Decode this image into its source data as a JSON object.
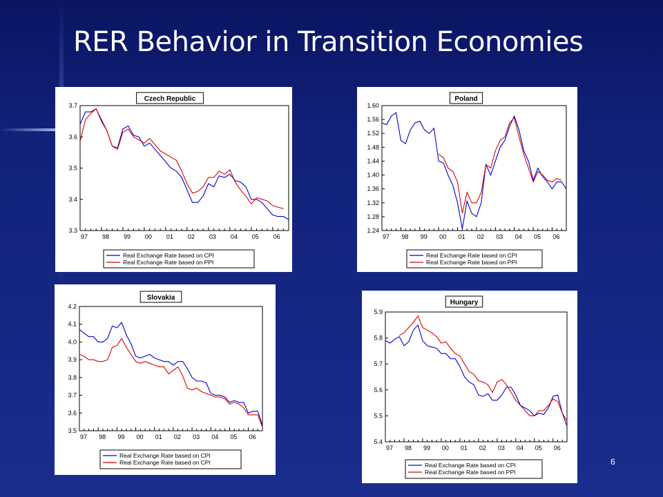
{
  "slide": {
    "title": "RER Behavior in Transition Economies",
    "page_number": "6"
  },
  "chart_data": [
    {
      "type": "line",
      "title": "Czech Republic",
      "x_labels": [
        "97",
        "98",
        "99",
        "00",
        "01",
        "02",
        "03",
        "04",
        "05",
        "06"
      ],
      "ylim": [
        3.3,
        3.7
      ],
      "yticks": [
        "3.3",
        "3.4",
        "3.5",
        "3.6",
        "3.7"
      ],
      "xlim": [
        1997.0,
        2006.75
      ],
      "series": [
        {
          "name": "Real Exchange Rate based on CPI",
          "color": "#0000cc",
          "x": [
            1997.0,
            1997.25,
            1997.5,
            1997.75,
            1998.0,
            1998.25,
            1998.5,
            1998.75,
            1999.0,
            1999.25,
            1999.5,
            1999.75,
            2000.0,
            2000.25,
            2000.5,
            2000.75,
            2001.0,
            2001.25,
            2001.5,
            2001.75,
            2002.0,
            2002.25,
            2002.5,
            2002.75,
            2003.0,
            2003.25,
            2003.5,
            2003.75,
            2004.0,
            2004.25,
            2004.5,
            2004.75,
            2005.0,
            2005.25,
            2005.5,
            2005.75,
            2006.0,
            2006.25,
            2006.5,
            2006.75
          ],
          "y": [
            3.64,
            3.68,
            3.68,
            3.69,
            3.65,
            3.62,
            3.57,
            3.565,
            3.625,
            3.635,
            3.605,
            3.6,
            3.57,
            3.58,
            3.56,
            3.54,
            3.52,
            3.5,
            3.49,
            3.47,
            3.43,
            3.39,
            3.39,
            3.41,
            3.45,
            3.44,
            3.475,
            3.47,
            3.48,
            3.46,
            3.455,
            3.44,
            3.4,
            3.4,
            3.39,
            3.37,
            3.35,
            3.345,
            3.345,
            3.335
          ]
        },
        {
          "name": "Real Exchange Rate based on PPI",
          "color": "#dd0000",
          "x": [
            1997.0,
            1997.25,
            1997.5,
            1997.75,
            1998.0,
            1998.25,
            1998.5,
            1998.75,
            1999.0,
            1999.25,
            1999.5,
            1999.75,
            2000.0,
            2000.25,
            2000.5,
            2000.75,
            2001.0,
            2001.25,
            2001.5,
            2001.75,
            2002.0,
            2002.25,
            2002.5,
            2002.75,
            2003.0,
            2003.25,
            2003.5,
            2003.75,
            2004.0,
            2004.25,
            2004.5,
            2004.75,
            2005.0,
            2005.25,
            2005.5,
            2005.75,
            2006.0,
            2006.25,
            2006.5
          ],
          "y": [
            3.585,
            3.655,
            3.675,
            3.69,
            3.655,
            3.62,
            3.57,
            3.56,
            3.615,
            3.625,
            3.6,
            3.59,
            3.58,
            3.595,
            3.575,
            3.555,
            3.545,
            3.535,
            3.525,
            3.49,
            3.45,
            3.42,
            3.425,
            3.44,
            3.47,
            3.47,
            3.49,
            3.48,
            3.495,
            3.455,
            3.43,
            3.41,
            3.385,
            3.405,
            3.4,
            3.395,
            3.38,
            3.375,
            3.37
          ]
        }
      ]
    },
    {
      "type": "line",
      "title": "Poland",
      "x_labels": [
        "97",
        "98",
        "99",
        "00",
        "01",
        "02",
        "03",
        "04",
        "05",
        "06"
      ],
      "ylim": [
        1.24,
        1.6
      ],
      "yticks": [
        "1.24",
        "1.28",
        "1.32",
        "1.36",
        "1.40",
        "1.44",
        "1.48",
        "1.52",
        "1.56",
        "1.60"
      ],
      "xlim": [
        1997.0,
        2006.75
      ],
      "series": [
        {
          "name": "Real Exchange Rate based on CPI",
          "color": "#0000cc",
          "x": [
            1997.0,
            1997.25,
            1997.5,
            1997.75,
            1998.0,
            1998.25,
            1998.5,
            1998.75,
            1999.0,
            1999.25,
            1999.5,
            1999.75,
            2000.0,
            2000.25,
            2000.5,
            2000.75,
            2001.0,
            2001.25,
            2001.5,
            2001.75,
            2002.0,
            2002.25,
            2002.5,
            2002.75,
            2003.0,
            2003.25,
            2003.5,
            2003.75,
            2004.0,
            2004.25,
            2004.5,
            2004.75,
            2005.0,
            2005.25,
            2005.5,
            2005.75,
            2006.0,
            2006.25,
            2006.5,
            2006.75
          ],
          "y": [
            1.55,
            1.545,
            1.57,
            1.58,
            1.5,
            1.49,
            1.53,
            1.55,
            1.555,
            1.53,
            1.52,
            1.535,
            1.44,
            1.435,
            1.4,
            1.37,
            1.32,
            1.245,
            1.325,
            1.29,
            1.28,
            1.32,
            1.43,
            1.4,
            1.44,
            1.48,
            1.5,
            1.54,
            1.57,
            1.53,
            1.47,
            1.44,
            1.385,
            1.42,
            1.395,
            1.38,
            1.36,
            1.38,
            1.38,
            1.36
          ]
        },
        {
          "name": "Real Exchange Rate based on PPI",
          "color": "#dd0000",
          "x": [
            2000.0,
            2000.25,
            2000.5,
            2000.75,
            2001.0,
            2001.25,
            2001.5,
            2001.75,
            2002.0,
            2002.25,
            2002.5,
            2002.75,
            2003.0,
            2003.25,
            2003.5,
            2003.75,
            2004.0,
            2004.25,
            2004.5,
            2004.75,
            2005.0,
            2005.25,
            2005.5,
            2005.75,
            2006.0,
            2006.25,
            2006.5
          ],
          "y": [
            1.46,
            1.45,
            1.42,
            1.41,
            1.38,
            1.29,
            1.35,
            1.32,
            1.32,
            1.35,
            1.43,
            1.42,
            1.47,
            1.5,
            1.51,
            1.55,
            1.565,
            1.51,
            1.46,
            1.42,
            1.38,
            1.41,
            1.4,
            1.385,
            1.38,
            1.39,
            1.385
          ]
        }
      ]
    },
    {
      "type": "line",
      "title": "Slovakia",
      "x_labels": [
        "97",
        "98",
        "99",
        "00",
        "01",
        "02",
        "03",
        "04",
        "05",
        "06"
      ],
      "ylim": [
        3.5,
        4.2
      ],
      "yticks": [
        "3.5",
        "3.6",
        "3.7",
        "3.8",
        "3.9",
        "4.0",
        "4.1",
        "4.2"
      ],
      "xlim": [
        1997.0,
        2006.75
      ],
      "series": [
        {
          "name": "Real Exchange Rate based on CPI",
          "color": "#0000cc",
          "x": [
            1997.0,
            1997.25,
            1997.5,
            1997.75,
            1998.0,
            1998.25,
            1998.5,
            1998.75,
            1999.0,
            1999.25,
            1999.5,
            1999.75,
            2000.0,
            2000.25,
            2000.5,
            2000.75,
            2001.0,
            2001.25,
            2001.5,
            2001.75,
            2002.0,
            2002.25,
            2002.5,
            2002.75,
            2003.0,
            2003.25,
            2003.5,
            2003.75,
            2004.0,
            2004.25,
            2004.5,
            2004.75,
            2005.0,
            2005.25,
            2005.5,
            2005.75,
            2006.0,
            2006.25,
            2006.5,
            2006.75
          ],
          "y": [
            4.07,
            4.05,
            4.03,
            4.03,
            4.0,
            4.0,
            4.02,
            4.09,
            4.08,
            4.11,
            4.04,
            3.99,
            3.92,
            3.91,
            3.92,
            3.93,
            3.91,
            3.9,
            3.89,
            3.89,
            3.87,
            3.89,
            3.89,
            3.85,
            3.8,
            3.78,
            3.78,
            3.77,
            3.71,
            3.7,
            3.7,
            3.69,
            3.66,
            3.67,
            3.66,
            3.66,
            3.6,
            3.61,
            3.61,
            3.53
          ]
        },
        {
          "name": "Real Exchange Rate based on CPI",
          "color": "#dd0000",
          "x": [
            1997.0,
            1997.25,
            1997.5,
            1997.75,
            1998.0,
            1998.25,
            1998.5,
            1998.75,
            1999.0,
            1999.25,
            1999.5,
            1999.75,
            2000.0,
            2000.25,
            2000.5,
            2000.75,
            2001.0,
            2001.25,
            2001.5,
            2001.75,
            2002.0,
            2002.25,
            2002.5,
            2002.75,
            2003.0,
            2003.25,
            2003.5,
            2003.75,
            2004.0,
            2004.25,
            2004.5,
            2004.75,
            2005.0,
            2005.25,
            2005.5,
            2005.75,
            2006.0,
            2006.25,
            2006.5,
            2006.75
          ],
          "y": [
            3.93,
            3.92,
            3.9,
            3.9,
            3.89,
            3.89,
            3.9,
            3.97,
            3.98,
            4.02,
            3.97,
            3.93,
            3.89,
            3.88,
            3.89,
            3.88,
            3.87,
            3.86,
            3.86,
            3.82,
            3.84,
            3.86,
            3.81,
            3.74,
            3.73,
            3.74,
            3.72,
            3.71,
            3.7,
            3.69,
            3.69,
            3.68,
            3.65,
            3.66,
            3.65,
            3.63,
            3.59,
            3.59,
            3.59,
            3.52
          ]
        }
      ]
    },
    {
      "type": "line",
      "title": "Hungary",
      "x_labels": [
        "97",
        "98",
        "99",
        "00",
        "01",
        "02",
        "03",
        "04",
        "05",
        "06"
      ],
      "ylim": [
        5.4,
        5.9
      ],
      "yticks": [
        "5.4",
        "5.5",
        "5.6",
        "5.7",
        "5.8",
        "5.9"
      ],
      "xlim": [
        1997.0,
        2006.75
      ],
      "series": [
        {
          "name": "Real Exchange Rate based on CPI",
          "color": "#0000cc",
          "x": [
            1997.0,
            1997.25,
            1997.5,
            1997.75,
            1998.0,
            1998.25,
            1998.5,
            1998.75,
            1999.0,
            1999.25,
            1999.5,
            1999.75,
            2000.0,
            2000.25,
            2000.5,
            2000.75,
            2001.0,
            2001.25,
            2001.5,
            2001.75,
            2002.0,
            2002.25,
            2002.5,
            2002.75,
            2003.0,
            2003.25,
            2003.5,
            2003.75,
            2004.0,
            2004.25,
            2004.5,
            2004.75,
            2005.0,
            2005.25,
            2005.5,
            2005.75,
            2006.0,
            2006.25,
            2006.5,
            2006.75
          ],
          "y": [
            5.79,
            5.78,
            5.795,
            5.805,
            5.77,
            5.785,
            5.83,
            5.85,
            5.79,
            5.77,
            5.765,
            5.76,
            5.74,
            5.74,
            5.72,
            5.72,
            5.69,
            5.65,
            5.63,
            5.62,
            5.58,
            5.575,
            5.585,
            5.56,
            5.56,
            5.58,
            5.61,
            5.61,
            5.58,
            5.54,
            5.53,
            5.52,
            5.5,
            5.51,
            5.505,
            5.53,
            5.575,
            5.58,
            5.51,
            5.46
          ]
        },
        {
          "name": "Real Exchange Rate based on PPI",
          "color": "#dd0000",
          "x": [
            1997.75,
            1998.0,
            1998.25,
            1998.5,
            1998.75,
            1999.0,
            1999.25,
            1999.5,
            1999.75,
            2000.0,
            2000.25,
            2000.5,
            2000.75,
            2001.0,
            2001.25,
            2001.5,
            2001.75,
            2002.0,
            2002.25,
            2002.5,
            2002.75,
            2003.0,
            2003.25,
            2003.5,
            2003.75,
            2004.0,
            2004.25,
            2004.5,
            2004.75,
            2005.0,
            2005.25,
            2005.5,
            2005.75,
            2006.0,
            2006.25,
            2006.5,
            2006.75
          ],
          "y": [
            5.81,
            5.82,
            5.84,
            5.86,
            5.885,
            5.84,
            5.83,
            5.82,
            5.805,
            5.78,
            5.785,
            5.76,
            5.74,
            5.73,
            5.7,
            5.67,
            5.66,
            5.635,
            5.63,
            5.62,
            5.59,
            5.63,
            5.64,
            5.62,
            5.59,
            5.56,
            5.54,
            5.52,
            5.5,
            5.5,
            5.52,
            5.52,
            5.54,
            5.565,
            5.555,
            5.51,
            5.48
          ]
        }
      ]
    }
  ]
}
